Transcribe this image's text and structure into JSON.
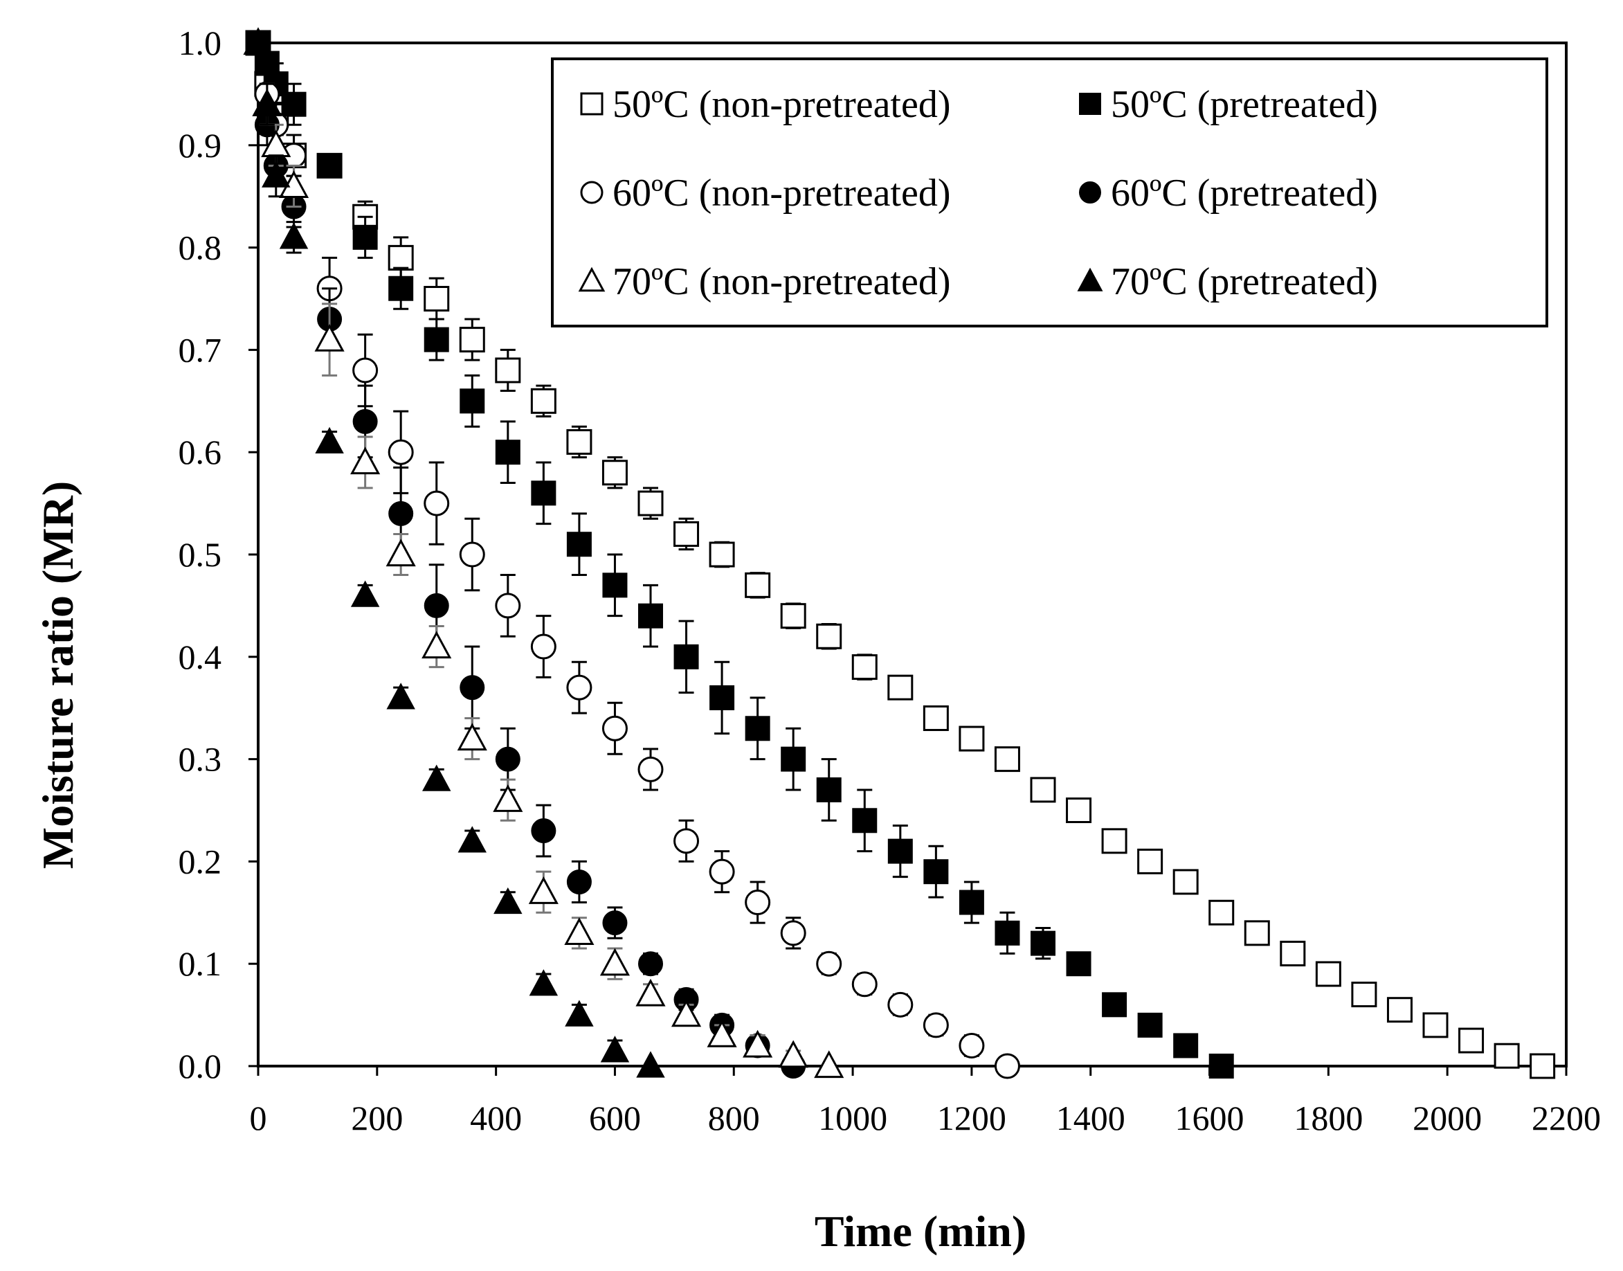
{
  "chart_data": {
    "type": "scatter",
    "title": "",
    "xlabel": "Time (min)",
    "ylabel": "Moisture ratio (MR)",
    "xlim": [
      0,
      2200
    ],
    "ylim": [
      0.0,
      1.0
    ],
    "x_ticks": [
      "0",
      "200",
      "400",
      "600",
      "800",
      "1000",
      "1200",
      "1400",
      "1600",
      "1800",
      "2000",
      "2200"
    ],
    "y_ticks": [
      "0.0",
      "0.1",
      "0.2",
      "0.3",
      "0.4",
      "0.5",
      "0.6",
      "0.7",
      "0.8",
      "0.9",
      "1.0"
    ],
    "grid": false,
    "legend_position": "top-right",
    "series": [
      {
        "name": "50ºC (non-pretreated)",
        "marker": "square-open",
        "x": [
          0,
          15,
          30,
          60,
          120,
          180,
          240,
          300,
          360,
          420,
          480,
          540,
          600,
          660,
          720,
          780,
          840,
          900,
          960,
          1020,
          1080,
          1140,
          1200,
          1260,
          1320,
          1380,
          1440,
          1500,
          1560,
          1620,
          1680,
          1740,
          1800,
          1860,
          1920,
          1980,
          2040,
          2100,
          2160
        ],
        "y": [
          1.0,
          0.96,
          0.93,
          0.89,
          0.88,
          0.83,
          0.79,
          0.75,
          0.71,
          0.68,
          0.65,
          0.61,
          0.58,
          0.55,
          0.52,
          0.5,
          0.47,
          0.44,
          0.42,
          0.39,
          0.37,
          0.34,
          0.32,
          0.3,
          0.27,
          0.25,
          0.22,
          0.2,
          0.18,
          0.15,
          0.13,
          0.11,
          0.09,
          0.07,
          0.055,
          0.04,
          0.025,
          0.01,
          0.0
        ],
        "err": [
          0,
          0.02,
          0.02,
          0.02,
          0.01,
          0.015,
          0.02,
          0.02,
          0.02,
          0.02,
          0.015,
          0.015,
          0.015,
          0.015,
          0.015,
          0.012,
          0.012,
          0.012,
          0.012,
          0.012,
          0.01,
          0.01,
          0.01,
          0.01,
          0.01,
          0.01,
          0.01,
          0.01,
          0.01,
          0.01,
          0.01,
          0.01,
          0.01,
          0.01,
          0.01,
          0.01,
          0.01,
          0.01,
          0
        ]
      },
      {
        "name": "50ºC (pretreated)",
        "marker": "square-filled",
        "x": [
          0,
          15,
          30,
          60,
          120,
          180,
          240,
          300,
          360,
          420,
          480,
          540,
          600,
          660,
          720,
          780,
          840,
          900,
          960,
          1020,
          1080,
          1140,
          1200,
          1260,
          1320,
          1380,
          1440,
          1500,
          1560,
          1620
        ],
        "y": [
          1.0,
          0.98,
          0.96,
          0.94,
          0.88,
          0.81,
          0.76,
          0.71,
          0.65,
          0.6,
          0.56,
          0.51,
          0.47,
          0.44,
          0.4,
          0.36,
          0.33,
          0.3,
          0.27,
          0.24,
          0.21,
          0.19,
          0.16,
          0.13,
          0.12,
          0.1,
          0.06,
          0.04,
          0.02,
          0.0
        ],
        "err": [
          0,
          0.02,
          0.02,
          0.02,
          0.01,
          0.02,
          0.02,
          0.02,
          0.025,
          0.03,
          0.03,
          0.03,
          0.03,
          0.03,
          0.035,
          0.035,
          0.03,
          0.03,
          0.03,
          0.03,
          0.025,
          0.025,
          0.02,
          0.02,
          0.015,
          0.01,
          0.01,
          0.01,
          0.01,
          0
        ]
      },
      {
        "name": "60ºC (non-pretreated)",
        "marker": "circle-open",
        "x": [
          0,
          15,
          30,
          60,
          120,
          180,
          240,
          300,
          360,
          420,
          480,
          540,
          600,
          660,
          720,
          780,
          840,
          900,
          960,
          1020,
          1080,
          1140,
          1200,
          1260
        ],
        "y": [
          1.0,
          0.95,
          0.92,
          0.89,
          0.76,
          0.68,
          0.6,
          0.55,
          0.5,
          0.45,
          0.41,
          0.37,
          0.33,
          0.29,
          0.22,
          0.19,
          0.16,
          0.13,
          0.1,
          0.08,
          0.06,
          0.04,
          0.02,
          0.0
        ],
        "err": [
          0,
          0.02,
          0.02,
          0.02,
          0.03,
          0.035,
          0.04,
          0.04,
          0.035,
          0.03,
          0.03,
          0.025,
          0.025,
          0.02,
          0.02,
          0.02,
          0.02,
          0.015,
          0.01,
          0.01,
          0.01,
          0.01,
          0.01,
          0
        ]
      },
      {
        "name": "60ºC (pretreated)",
        "marker": "circle-filled",
        "x": [
          0,
          15,
          30,
          60,
          120,
          180,
          240,
          300,
          360,
          420,
          480,
          540,
          600,
          660,
          720,
          780,
          840,
          900
        ],
        "y": [
          1.0,
          0.92,
          0.88,
          0.84,
          0.73,
          0.63,
          0.54,
          0.45,
          0.37,
          0.3,
          0.23,
          0.18,
          0.14,
          0.1,
          0.065,
          0.04,
          0.02,
          0.0
        ],
        "err": [
          0,
          0.02,
          0.02,
          0.02,
          0.03,
          0.035,
          0.045,
          0.04,
          0.04,
          0.03,
          0.025,
          0.02,
          0.015,
          0.01,
          0.01,
          0.01,
          0.01,
          0
        ]
      },
      {
        "name": "70ºC (non-pretreated)",
        "marker": "triangle-open",
        "x": [
          0,
          15,
          30,
          60,
          120,
          180,
          240,
          300,
          360,
          420,
          480,
          540,
          600,
          660,
          720,
          780,
          840,
          900,
          960
        ],
        "y": [
          1.0,
          0.94,
          0.9,
          0.86,
          0.71,
          0.59,
          0.5,
          0.41,
          0.32,
          0.26,
          0.17,
          0.13,
          0.1,
          0.07,
          0.05,
          0.03,
          0.02,
          0.01,
          0.0
        ],
        "err": [
          0,
          0.02,
          0.02,
          0.02,
          0.035,
          0.025,
          0.02,
          0.02,
          0.02,
          0.02,
          0.02,
          0.015,
          0.015,
          0.01,
          0.01,
          0.01,
          0.01,
          0.005,
          0
        ]
      },
      {
        "name": "70ºC (pretreated)",
        "marker": "triangle-filled",
        "x": [
          0,
          15,
          30,
          60,
          120,
          180,
          240,
          300,
          360,
          420,
          480,
          540,
          600,
          660
        ],
        "y": [
          1.0,
          0.94,
          0.87,
          0.81,
          0.61,
          0.46,
          0.36,
          0.28,
          0.22,
          0.16,
          0.08,
          0.05,
          0.015,
          0.0
        ],
        "err": [
          0,
          0.02,
          0.02,
          0.015,
          0.01,
          0.01,
          0.01,
          0.01,
          0.01,
          0.01,
          0.01,
          0.01,
          0.01,
          0
        ]
      }
    ]
  }
}
